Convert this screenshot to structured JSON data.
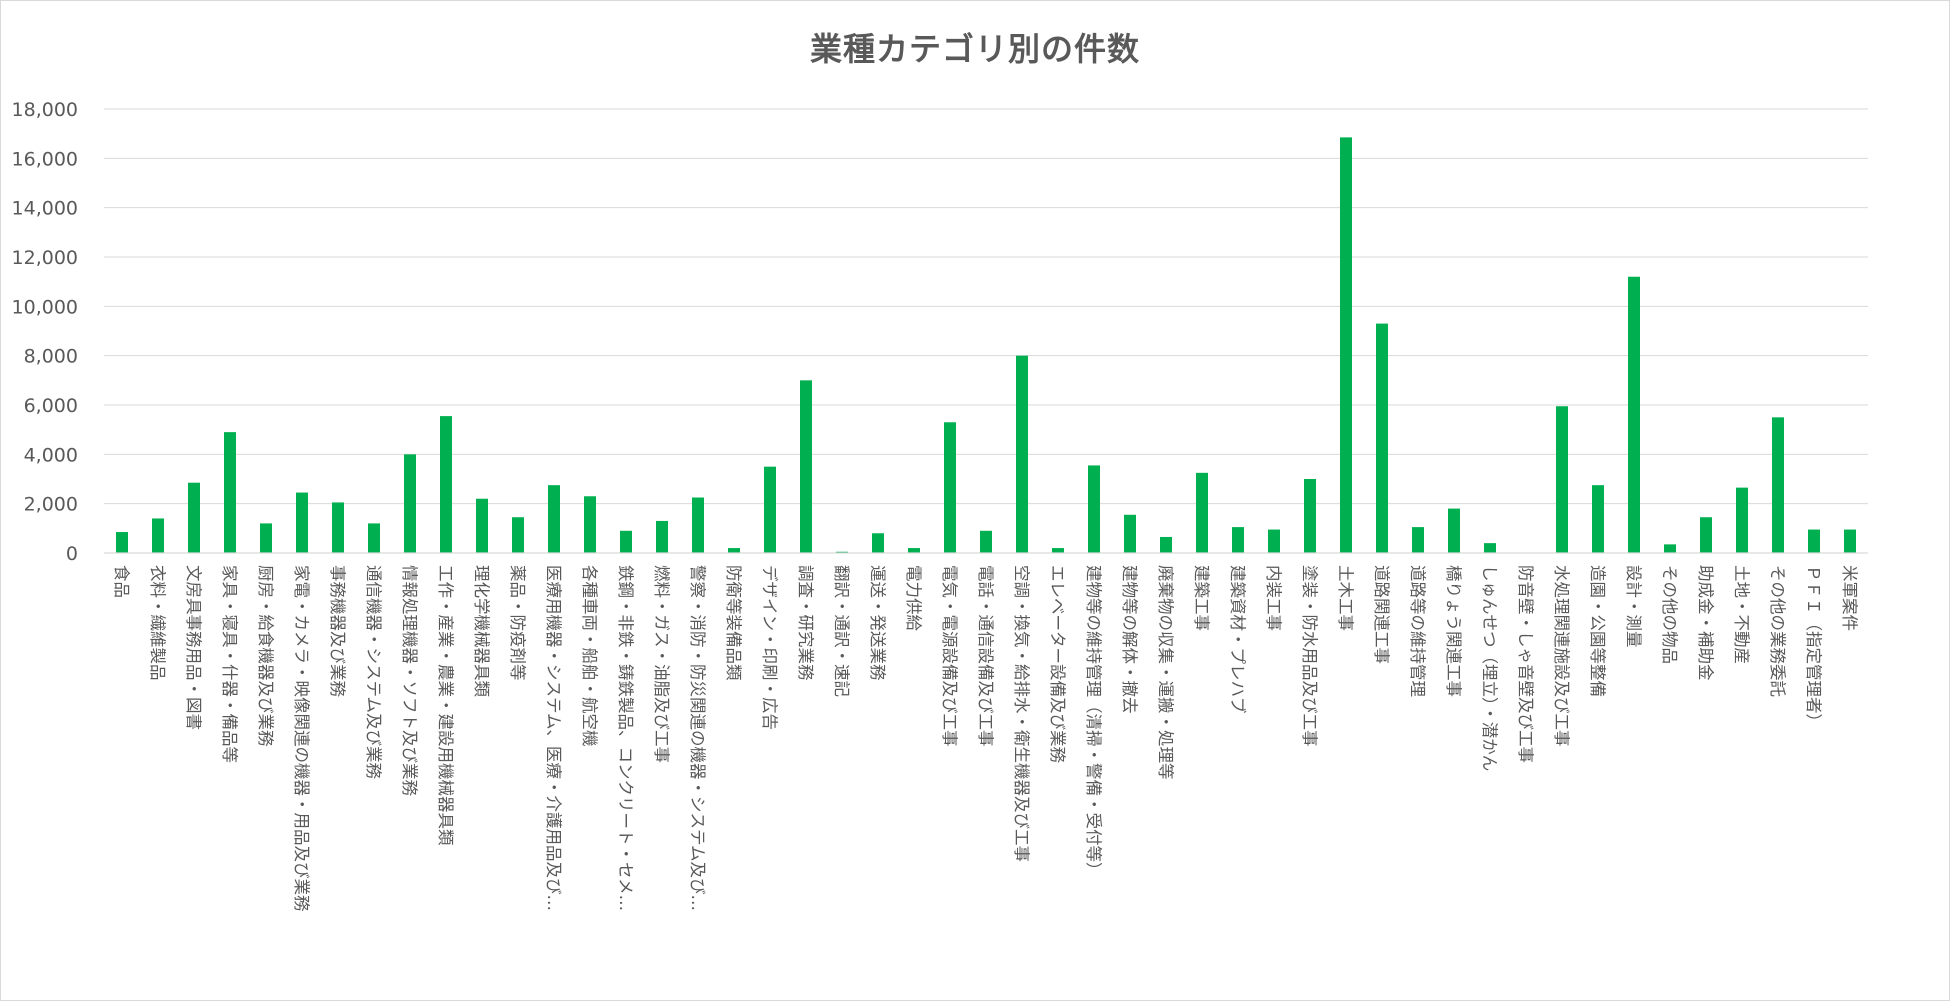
{
  "chart_data": {
    "type": "bar",
    "title": "業種カテゴリ別の件数",
    "xlabel": "",
    "ylabel": "",
    "ylim": [
      0,
      18000
    ],
    "yticks": [
      0,
      2000,
      4000,
      6000,
      8000,
      10000,
      12000,
      14000,
      16000,
      18000
    ],
    "ytick_labels": [
      "0",
      "2,000",
      "4,000",
      "6,000",
      "8,000",
      "10,000",
      "12,000",
      "14,000",
      "16,000",
      "18,000"
    ],
    "grid": true,
    "legend": "none",
    "bar_color": "#00b050",
    "categories": [
      "食品",
      "衣料・繊維製品",
      "文房具事務用品・図書",
      "家具・寝具・什器・備品等",
      "厨房・給食機器及び業務",
      "家電・カメラ・映像関連の機器・用品及び業務",
      "事務機器及び業務",
      "通信機器・システム及び業務",
      "情報処理機器・ソフト及び業務",
      "工作・産業・農業・建設用機械器具類",
      "理化学機械器具類",
      "薬品・防疫剤等",
      "医療用機器・システム、医療・介護用品及び…",
      "各種車両・船舶・航空機",
      "鉄鋼・非鉄・鋳鉄製品、コンクリート・セメ…",
      "燃料・ガス・油脂及び工事",
      "警察・消防・防災関連の機器・システム及び…",
      "防衛等装備品類",
      "デザイン・印刷・広告",
      "調査・研究業務",
      "翻訳・通訳・速記",
      "運送・発送業務",
      "電力供給",
      "電気・電源設備及び工事",
      "電話・通信設備及び工事",
      "空調・換気・給排水・衛生機器及び工事",
      "エレベーター設備及び業務",
      "建物等の維持管理（清掃・警備・受付等）",
      "建物等の解体・撤去",
      "廃棄物の収集・運搬・処理等",
      "建築工事",
      "建築資材・プレハブ",
      "内装工事",
      "塗装・防水用品及び工事",
      "土木工事",
      "道路関連工事",
      "道路等の維持管理",
      "橋りょう関連工事",
      "しゅんせつ（埋立）・潜かん",
      "防音壁・しゃ音壁及び工事",
      "水処理関連施設及び工事",
      "造園・公園等整備",
      "設計・測量",
      "その他の物品",
      "助成金・補助金",
      "土地・不動産",
      "その他の業務委託",
      "ＰＦＩ（指定管理者）",
      "米軍案件"
    ],
    "values": [
      850,
      1400,
      2850,
      4900,
      1200,
      2450,
      2050,
      1200,
      4000,
      5550,
      2200,
      1450,
      2750,
      2300,
      900,
      1300,
      2250,
      200,
      3500,
      7000,
      50,
      800,
      200,
      5300,
      900,
      8000,
      200,
      3550,
      1550,
      650,
      3250,
      1050,
      950,
      3000,
      16850,
      9300,
      1050,
      1800,
      400,
      0,
      5950,
      2750,
      11200,
      350,
      1450,
      2650,
      5500,
      950,
      950
    ]
  }
}
